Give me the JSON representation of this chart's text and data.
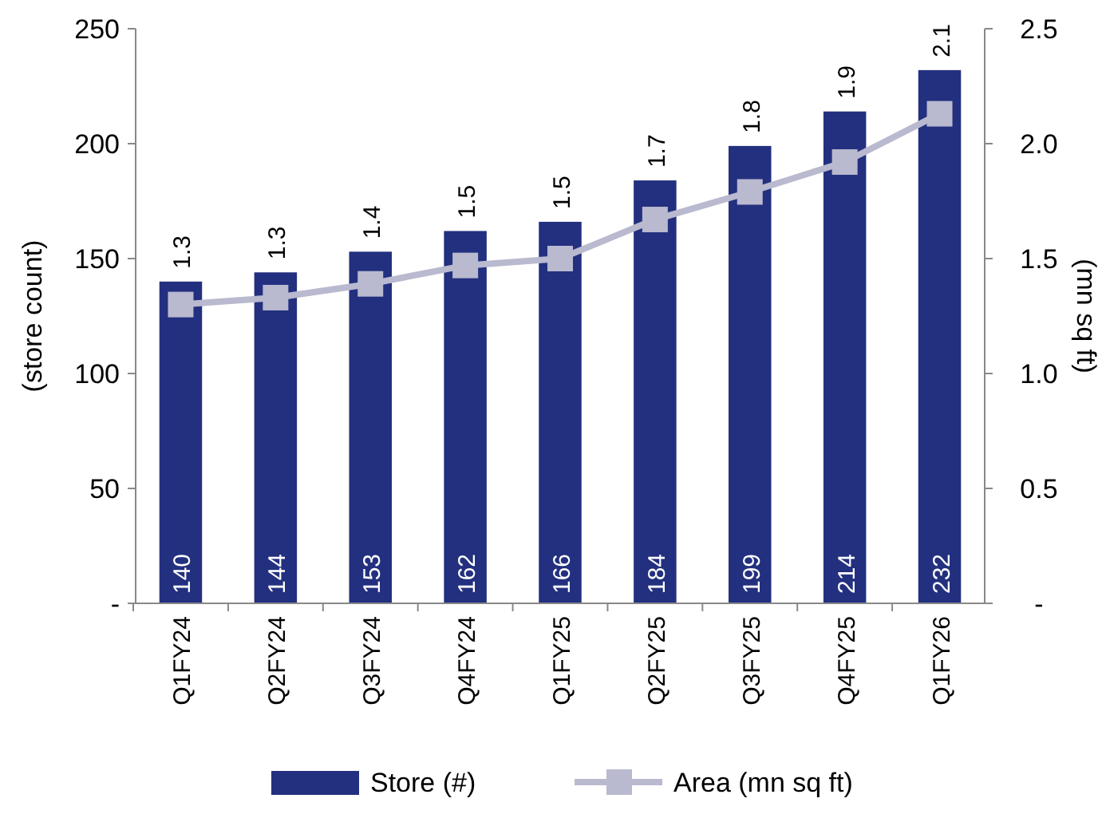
{
  "chart_data": {
    "type": "bar",
    "categories": [
      "Q1FY24",
      "Q2FY24",
      "Q3FY24",
      "Q4FY24",
      "Q1FY25",
      "Q2FY25",
      "Q3FY25",
      "Q4FY25",
      "Q1FY26"
    ],
    "series": [
      {
        "name": "Store (#)",
        "color": "#23307f",
        "values": [
          140,
          144,
          153,
          162,
          166,
          184,
          199,
          214,
          232
        ],
        "value_labels": [
          "140",
          "144",
          "153",
          "162",
          "166",
          "184",
          "199",
          "214",
          "232"
        ]
      },
      {
        "name": "Area (mn sq ft)",
        "type": "line",
        "axis": "y2",
        "color": "#b9b9cf",
        "marker": "square",
        "values": [
          1.3,
          1.33,
          1.39,
          1.47,
          1.5,
          1.67,
          1.79,
          1.92,
          2.13
        ],
        "value_labels": [
          "1.3",
          "1.3",
          "1.4",
          "1.5",
          "1.5",
          "1.7",
          "1.8",
          "1.9",
          "2.1"
        ]
      }
    ],
    "ylabel": "(store count)",
    "y2label": "(mn sq ft)",
    "ylim": [
      0,
      250
    ],
    "yticks": [
      {
        "value": 0,
        "label": "-"
      },
      50,
      100,
      150,
      200,
      250
    ],
    "y2lim": [
      0,
      2.5
    ],
    "y2ticks": [
      {
        "value": 0,
        "label": "-"
      },
      0.5,
      {
        "value": 1,
        "label": "1.0"
      },
      1.5,
      {
        "value": 2,
        "label": "2.0"
      },
      2.5
    ],
    "legend": "bottom",
    "grid": false
  }
}
